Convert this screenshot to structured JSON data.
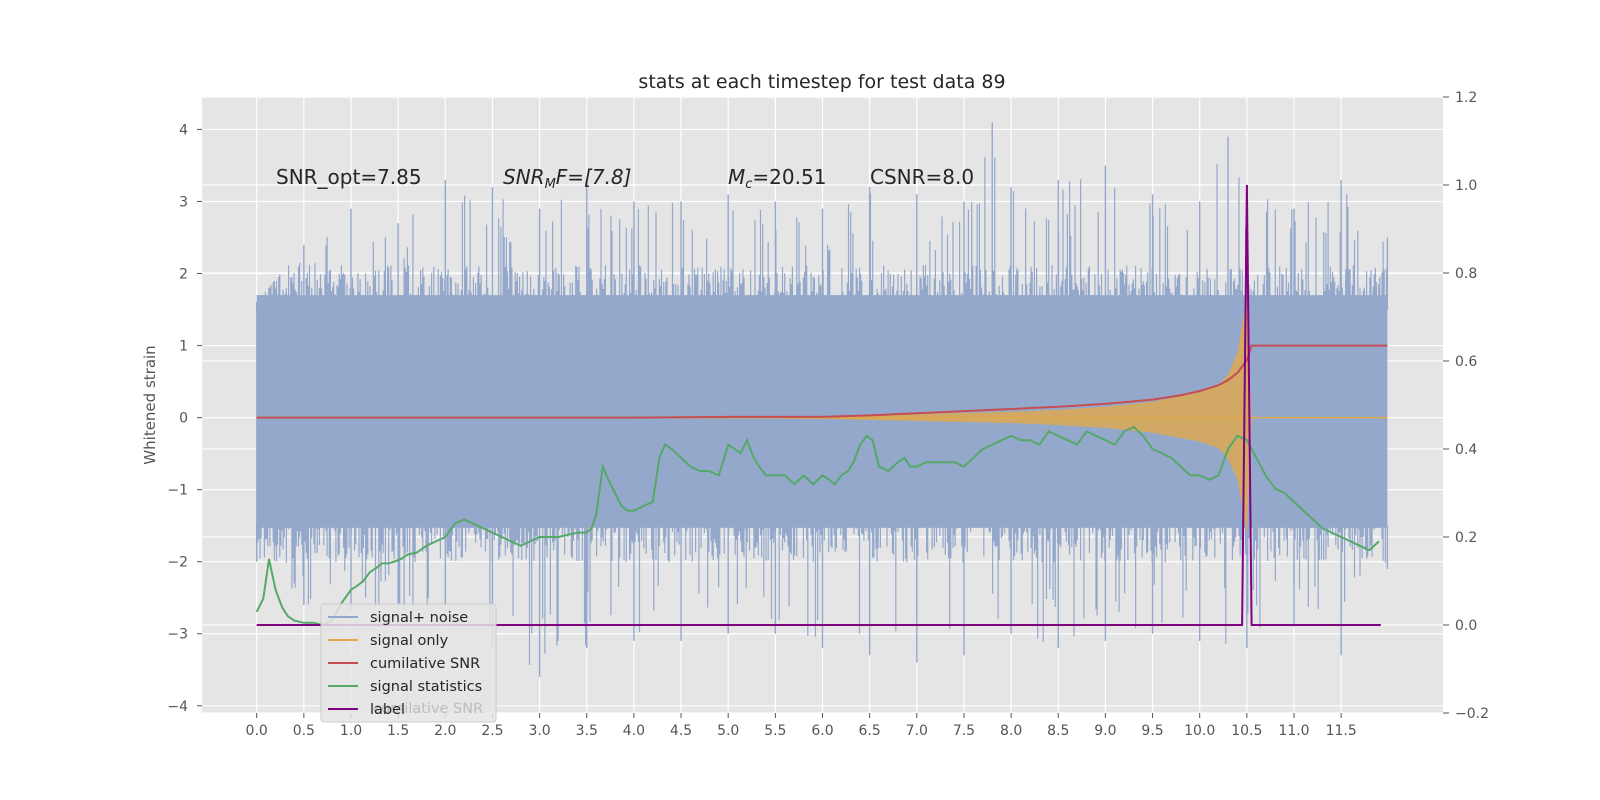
{
  "chart_data": {
    "type": "line",
    "title": "stats at each timestep for test data 89",
    "ylabel": "Whitened strain",
    "xlabel": "",
    "xlim": [
      -0.58,
      12.58
    ],
    "ylim": [
      -4.1,
      4.45
    ],
    "y2lim": [
      -0.2,
      1.2
    ],
    "grid": true,
    "legend_position": "lower-left",
    "x_ticks": [
      "0.0",
      "0.5",
      "1.0",
      "1.5",
      "2.0",
      "2.5",
      "3.0",
      "3.5",
      "4.0",
      "4.5",
      "5.0",
      "5.5",
      "6.0",
      "6.5",
      "7.0",
      "7.5",
      "8.0",
      "8.5",
      "9.0",
      "9.5",
      "10.0",
      "10.5",
      "11.0",
      "11.5"
    ],
    "y_ticks": [
      "4",
      "3",
      "2",
      "1",
      "0",
      "−1",
      "−2",
      "−3",
      "−4"
    ],
    "y2_ticks": [
      "1.2",
      "1.0",
      "0.8",
      "0.6",
      "0.4",
      "0.2",
      "0.0",
      "−0.2"
    ],
    "annotations": {
      "snr_opt": "SNR_opt=7.85",
      "snr_mf_sym": "SNR",
      "snr_mf_sub": "M",
      "snr_mf_tail": "F=[7.8]",
      "mc_sym": "M",
      "mc_sub": "c",
      "mc_tail": "=20.51",
      "csnr": "CSNR=8.0"
    },
    "legend": {
      "entries": [
        "signal+ noise",
        "signal only",
        "cumilative SNR",
        "signal statistics",
        "label"
      ],
      "ghost_text": "cumilative SNR"
    },
    "series": [
      {
        "name": "signal+ noise",
        "axis": "left",
        "color": "#94a8cc",
        "x_range": [
          0.0,
          11.99
        ],
        "envelope_max": [
          [
            0.0,
            1.6
          ],
          [
            0.5,
            2.4
          ],
          [
            1.0,
            2.9
          ],
          [
            1.5,
            2.7
          ],
          [
            2.0,
            3.3
          ],
          [
            2.5,
            3.2
          ],
          [
            3.0,
            2.9
          ],
          [
            3.5,
            3.3
          ],
          [
            4.0,
            3.0
          ],
          [
            4.5,
            3.0
          ],
          [
            5.0,
            3.1
          ],
          [
            5.5,
            3.0
          ],
          [
            6.0,
            2.9
          ],
          [
            6.5,
            3.2
          ],
          [
            7.0,
            3.1
          ],
          [
            7.5,
            3.0
          ],
          [
            7.8,
            4.1
          ],
          [
            8.0,
            3.2
          ],
          [
            8.5,
            3.3
          ],
          [
            9.0,
            3.5
          ],
          [
            9.5,
            3.1
          ],
          [
            10.0,
            3.0
          ],
          [
            10.3,
            3.9
          ],
          [
            10.5,
            3.2
          ],
          [
            11.0,
            2.9
          ],
          [
            11.5,
            3.3
          ],
          [
            11.99,
            2.5
          ]
        ],
        "envelope_min": [
          [
            0.0,
            -2.0
          ],
          [
            0.5,
            -2.6
          ],
          [
            1.0,
            -2.7
          ],
          [
            1.5,
            -2.8
          ],
          [
            2.0,
            -2.8
          ],
          [
            2.5,
            -3.2
          ],
          [
            3.0,
            -3.6
          ],
          [
            3.5,
            -3.2
          ],
          [
            4.0,
            -3.1
          ],
          [
            4.5,
            -3.1
          ],
          [
            5.0,
            -3.0
          ],
          [
            5.5,
            -3.0
          ],
          [
            6.0,
            -3.2
          ],
          [
            6.5,
            -3.3
          ],
          [
            7.0,
            -3.4
          ],
          [
            7.5,
            -3.3
          ],
          [
            8.0,
            -3.0
          ],
          [
            8.5,
            -3.2
          ],
          [
            9.0,
            -3.1
          ],
          [
            9.5,
            -3.0
          ],
          [
            10.0,
            -3.1
          ],
          [
            10.5,
            -3.2
          ],
          [
            11.0,
            -2.9
          ],
          [
            11.5,
            -3.3
          ],
          [
            11.99,
            -2.1
          ]
        ],
        "typical_band": [
          -1.8,
          2.0
        ]
      },
      {
        "name": "signal only",
        "axis": "left",
        "color": "#e0a94a",
        "description_amplitude": [
          [
            0.0,
            0.0
          ],
          [
            5.0,
            0.005
          ],
          [
            6.0,
            0.02
          ],
          [
            7.0,
            0.05
          ],
          [
            8.0,
            0.08
          ],
          [
            8.5,
            0.11
          ],
          [
            9.0,
            0.15
          ],
          [
            9.5,
            0.22
          ],
          [
            10.0,
            0.35
          ],
          [
            10.2,
            0.45
          ],
          [
            10.3,
            0.6
          ],
          [
            10.4,
            0.9
          ],
          [
            10.5,
            1.7
          ],
          [
            10.55,
            0.0
          ],
          [
            11.99,
            0.0
          ]
        ]
      },
      {
        "name": "cumilative SNR",
        "axis": "left",
        "color": "#c44e52",
        "x": [
          0.0,
          1.0,
          2.0,
          3.0,
          4.0,
          5.0,
          6.0,
          6.5,
          7.0,
          7.5,
          8.0,
          8.5,
          9.0,
          9.5,
          9.8,
          10.0,
          10.2,
          10.3,
          10.4,
          10.5,
          10.55,
          11.0,
          11.5,
          11.99
        ],
        "y": [
          0.0,
          0.0,
          0.0,
          0.0,
          0.0,
          0.01,
          0.01,
          0.03,
          0.06,
          0.09,
          0.12,
          0.15,
          0.19,
          0.25,
          0.31,
          0.37,
          0.45,
          0.52,
          0.62,
          0.8,
          1.0,
          1.0,
          1.0,
          1.0
        ]
      },
      {
        "name": "signal statistics",
        "axis": "right",
        "color": "#55a868",
        "x": [
          0.0,
          0.07,
          0.13,
          0.2,
          0.27,
          0.33,
          0.4,
          0.5,
          0.6,
          0.7,
          0.8,
          0.9,
          1.0,
          1.07,
          1.13,
          1.2,
          1.27,
          1.33,
          1.4,
          1.47,
          1.53,
          1.6,
          1.7,
          1.8,
          1.9,
          2.0,
          2.1,
          2.2,
          2.3,
          2.4,
          2.5,
          2.6,
          2.7,
          2.8,
          2.9,
          3.0,
          3.1,
          3.2,
          3.3,
          3.4,
          3.5,
          3.55,
          3.6,
          3.67,
          3.73,
          3.8,
          3.87,
          3.93,
          4.0,
          4.1,
          4.2,
          4.27,
          4.33,
          4.4,
          4.5,
          4.6,
          4.7,
          4.8,
          4.9,
          5.0,
          5.07,
          5.13,
          5.2,
          5.27,
          5.33,
          5.4,
          5.5,
          5.6,
          5.7,
          5.8,
          5.9,
          6.0,
          6.07,
          6.13,
          6.2,
          6.27,
          6.33,
          6.4,
          6.47,
          6.53,
          6.6,
          6.7,
          6.8,
          6.87,
          6.93,
          7.0,
          7.1,
          7.2,
          7.3,
          7.4,
          7.5,
          7.6,
          7.7,
          7.8,
          7.9,
          8.0,
          8.1,
          8.2,
          8.3,
          8.4,
          8.5,
          8.6,
          8.7,
          8.8,
          8.9,
          9.0,
          9.1,
          9.2,
          9.3,
          9.4,
          9.5,
          9.6,
          9.7,
          9.8,
          9.9,
          10.0,
          10.1,
          10.2,
          10.3,
          10.4,
          10.5,
          10.6,
          10.7,
          10.8,
          10.9,
          11.0,
          11.1,
          11.2,
          11.3,
          11.4,
          11.5,
          11.6,
          11.7,
          11.8,
          11.9
        ],
        "y": [
          0.03,
          0.06,
          0.15,
          0.08,
          0.04,
          0.02,
          0.01,
          0.005,
          0.005,
          0.0,
          0.01,
          0.05,
          0.08,
          0.09,
          0.1,
          0.12,
          0.13,
          0.14,
          0.14,
          0.145,
          0.15,
          0.16,
          0.165,
          0.18,
          0.19,
          0.2,
          0.23,
          0.24,
          0.23,
          0.22,
          0.21,
          0.2,
          0.19,
          0.18,
          0.19,
          0.2,
          0.2,
          0.2,
          0.205,
          0.21,
          0.21,
          0.22,
          0.25,
          0.36,
          0.33,
          0.3,
          0.27,
          0.26,
          0.26,
          0.27,
          0.28,
          0.38,
          0.41,
          0.4,
          0.38,
          0.36,
          0.35,
          0.35,
          0.34,
          0.41,
          0.4,
          0.39,
          0.42,
          0.38,
          0.36,
          0.34,
          0.34,
          0.34,
          0.32,
          0.34,
          0.32,
          0.34,
          0.33,
          0.32,
          0.34,
          0.35,
          0.37,
          0.41,
          0.43,
          0.42,
          0.36,
          0.35,
          0.37,
          0.38,
          0.36,
          0.36,
          0.37,
          0.37,
          0.37,
          0.37,
          0.36,
          0.38,
          0.4,
          0.41,
          0.42,
          0.43,
          0.42,
          0.42,
          0.41,
          0.44,
          0.43,
          0.42,
          0.41,
          0.44,
          0.43,
          0.42,
          0.41,
          0.44,
          0.45,
          0.43,
          0.4,
          0.39,
          0.38,
          0.36,
          0.34,
          0.34,
          0.33,
          0.34,
          0.4,
          0.43,
          0.42,
          0.38,
          0.34,
          0.31,
          0.3,
          0.28,
          0.26,
          0.24,
          0.22,
          0.21,
          0.2,
          0.19,
          0.18,
          0.17,
          0.19
        ],
        "y_fixed_first_part": true
      },
      {
        "name": "label",
        "axis": "right",
        "color": "#800080",
        "x": [
          0.0,
          10.45,
          10.5,
          10.55,
          11.92
        ],
        "y": [
          0.0,
          0.0,
          1.0,
          0.0,
          0.0
        ]
      }
    ]
  }
}
